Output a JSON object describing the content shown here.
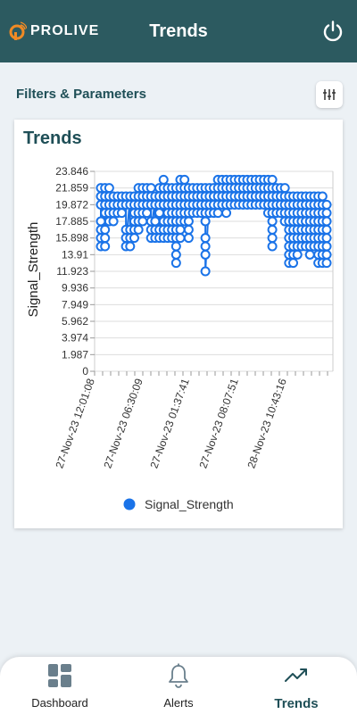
{
  "header": {
    "logo_text": "PROLIVE",
    "title": "Trends"
  },
  "filters": {
    "label": "Filters & Parameters"
  },
  "card": {
    "title": "Trends"
  },
  "chart_data": {
    "type": "scatter",
    "title": "Trends",
    "xlabel": "",
    "ylabel": "Signal_Strength",
    "ylim": [
      0,
      23.846
    ],
    "y_ticks": [
      "23.846",
      "21.859",
      "19.872",
      "17.885",
      "15.898",
      "13.91",
      "11.923",
      "9.936",
      "7.949",
      "5.962",
      "3.974",
      "1.987",
      "0"
    ],
    "x_ticks": [
      "27-Nov-23 12:01:08",
      "27-Nov-23 06:30:09",
      "27-Nov-23 01:37:41",
      "27-Nov-23 08:07:51",
      "28-Nov-23 10:43:16"
    ],
    "legend": "bottom",
    "grid": true,
    "series": [
      {
        "name": "Signal_Strength",
        "color": "#1a73e8",
        "values": [
          [
            0,
            21.86
          ],
          [
            0,
            20.87
          ],
          [
            0,
            19.87
          ],
          [
            0,
            17.89
          ],
          [
            0,
            16.89
          ],
          [
            0,
            15.9
          ],
          [
            0,
            14.9
          ],
          [
            1,
            21.86
          ],
          [
            1,
            20.87
          ],
          [
            1,
            19.87
          ],
          [
            1,
            18.88
          ],
          [
            1,
            16.89
          ],
          [
            1,
            15.9
          ],
          [
            1,
            14.9
          ],
          [
            2,
            21.86
          ],
          [
            2,
            20.87
          ],
          [
            2,
            19.87
          ],
          [
            2,
            18.88
          ],
          [
            2,
            17.89
          ],
          [
            3,
            20.87
          ],
          [
            3,
            19.87
          ],
          [
            3,
            18.88
          ],
          [
            3,
            17.89
          ],
          [
            4,
            20.87
          ],
          [
            4,
            19.87
          ],
          [
            4,
            18.88
          ],
          [
            5,
            20.87
          ],
          [
            5,
            19.87
          ],
          [
            5,
            18.88
          ],
          [
            6,
            20.87
          ],
          [
            6,
            19.87
          ],
          [
            6,
            16.89
          ],
          [
            6,
            15.9
          ],
          [
            6,
            14.9
          ],
          [
            7,
            20.87
          ],
          [
            7,
            19.87
          ],
          [
            7,
            16.89
          ],
          [
            7,
            15.9
          ],
          [
            7,
            14.9
          ],
          [
            8,
            20.87
          ],
          [
            8,
            19.87
          ],
          [
            8,
            18.88
          ],
          [
            8,
            17.89
          ],
          [
            8,
            16.89
          ],
          [
            8,
            15.9
          ],
          [
            9,
            21.86
          ],
          [
            9,
            20.87
          ],
          [
            9,
            19.87
          ],
          [
            9,
            18.88
          ],
          [
            9,
            17.89
          ],
          [
            9,
            16.89
          ],
          [
            10,
            21.86
          ],
          [
            10,
            20.87
          ],
          [
            10,
            19.87
          ],
          [
            10,
            18.88
          ],
          [
            10,
            17.89
          ],
          [
            11,
            21.86
          ],
          [
            11,
            20.87
          ],
          [
            11,
            19.87
          ],
          [
            11,
            18.88
          ],
          [
            12,
            21.86
          ],
          [
            12,
            20.87
          ],
          [
            12,
            19.87
          ],
          [
            12,
            17.89
          ],
          [
            12,
            16.89
          ],
          [
            12,
            15.9
          ],
          [
            13,
            20.87
          ],
          [
            13,
            19.87
          ],
          [
            13,
            17.89
          ],
          [
            13,
            16.89
          ],
          [
            13,
            15.9
          ],
          [
            14,
            21.86
          ],
          [
            14,
            20.87
          ],
          [
            14,
            19.87
          ],
          [
            14,
            18.88
          ],
          [
            14,
            16.89
          ],
          [
            14,
            15.9
          ],
          [
            15,
            22.85
          ],
          [
            15,
            21.86
          ],
          [
            15,
            20.87
          ],
          [
            15,
            19.87
          ],
          [
            15,
            17.89
          ],
          [
            15,
            16.89
          ],
          [
            15,
            15.9
          ],
          [
            16,
            21.86
          ],
          [
            16,
            20.87
          ],
          [
            16,
            19.87
          ],
          [
            16,
            18.88
          ],
          [
            16,
            17.89
          ],
          [
            16,
            16.89
          ],
          [
            16,
            15.9
          ],
          [
            17,
            21.86
          ],
          [
            17,
            20.87
          ],
          [
            17,
            19.87
          ],
          [
            17,
            18.88
          ],
          [
            17,
            17.89
          ],
          [
            17,
            16.89
          ],
          [
            17,
            15.9
          ],
          [
            18,
            21.86
          ],
          [
            18,
            20.87
          ],
          [
            18,
            19.87
          ],
          [
            18,
            18.88
          ],
          [
            18,
            17.89
          ],
          [
            18,
            16.89
          ],
          [
            18,
            15.9
          ],
          [
            18,
            14.9
          ],
          [
            18,
            13.91
          ],
          [
            18,
            12.92
          ],
          [
            19,
            22.85
          ],
          [
            19,
            21.86
          ],
          [
            19,
            20.87
          ],
          [
            19,
            19.87
          ],
          [
            19,
            18.88
          ],
          [
            19,
            17.89
          ],
          [
            19,
            16.89
          ],
          [
            19,
            15.9
          ],
          [
            20,
            22.85
          ],
          [
            20,
            21.86
          ],
          [
            20,
            20.87
          ],
          [
            20,
            19.87
          ],
          [
            20,
            18.88
          ],
          [
            20,
            17.89
          ],
          [
            21,
            21.86
          ],
          [
            21,
            20.87
          ],
          [
            21,
            19.87
          ],
          [
            21,
            18.88
          ],
          [
            21,
            17.89
          ],
          [
            21,
            16.89
          ],
          [
            21,
            15.9
          ],
          [
            22,
            21.86
          ],
          [
            22,
            20.87
          ],
          [
            22,
            19.87
          ],
          [
            22,
            18.88
          ],
          [
            23,
            21.86
          ],
          [
            23,
            20.87
          ],
          [
            23,
            19.87
          ],
          [
            23,
            18.88
          ],
          [
            24,
            21.86
          ],
          [
            24,
            20.87
          ],
          [
            24,
            19.87
          ],
          [
            24,
            18.88
          ],
          [
            25,
            21.86
          ],
          [
            25,
            20.87
          ],
          [
            25,
            19.87
          ],
          [
            25,
            18.88
          ],
          [
            25,
            17.89
          ],
          [
            25,
            15.9
          ],
          [
            25,
            14.9
          ],
          [
            25,
            13.91
          ],
          [
            25,
            11.92
          ],
          [
            26,
            21.86
          ],
          [
            26,
            20.87
          ],
          [
            26,
            19.87
          ],
          [
            26,
            18.88
          ],
          [
            27,
            21.86
          ],
          [
            27,
            20.87
          ],
          [
            27,
            19.87
          ],
          [
            27,
            18.88
          ],
          [
            28,
            22.85
          ],
          [
            28,
            21.86
          ],
          [
            28,
            20.87
          ],
          [
            28,
            19.87
          ],
          [
            28,
            18.88
          ],
          [
            29,
            22.85
          ],
          [
            29,
            21.86
          ],
          [
            29,
            20.87
          ],
          [
            29,
            19.87
          ],
          [
            30,
            22.85
          ],
          [
            30,
            21.86
          ],
          [
            30,
            20.87
          ],
          [
            30,
            19.87
          ],
          [
            30,
            18.88
          ],
          [
            31,
            22.85
          ],
          [
            31,
            21.86
          ],
          [
            31,
            20.87
          ],
          [
            31,
            19.87
          ],
          [
            32,
            22.85
          ],
          [
            32,
            21.86
          ],
          [
            32,
            20.87
          ],
          [
            32,
            19.87
          ],
          [
            33,
            22.85
          ],
          [
            33,
            21.86
          ],
          [
            33,
            20.87
          ],
          [
            33,
            19.87
          ],
          [
            34,
            22.85
          ],
          [
            34,
            21.86
          ],
          [
            34,
            20.87
          ],
          [
            34,
            19.87
          ],
          [
            35,
            22.85
          ],
          [
            35,
            21.86
          ],
          [
            35,
            20.87
          ],
          [
            35,
            19.87
          ],
          [
            36,
            22.85
          ],
          [
            36,
            21.86
          ],
          [
            36,
            20.87
          ],
          [
            36,
            19.87
          ],
          [
            37,
            22.85
          ],
          [
            37,
            21.86
          ],
          [
            37,
            20.87
          ],
          [
            37,
            19.87
          ],
          [
            38,
            22.85
          ],
          [
            38,
            21.86
          ],
          [
            38,
            20.87
          ],
          [
            38,
            19.87
          ],
          [
            39,
            22.85
          ],
          [
            39,
            21.86
          ],
          [
            39,
            20.87
          ],
          [
            39,
            19.87
          ],
          [
            40,
            22.85
          ],
          [
            40,
            21.86
          ],
          [
            40,
            20.87
          ],
          [
            40,
            19.87
          ],
          [
            40,
            18.88
          ],
          [
            41,
            22.85
          ],
          [
            41,
            21.86
          ],
          [
            41,
            20.87
          ],
          [
            41,
            19.87
          ],
          [
            41,
            18.88
          ],
          [
            41,
            17.89
          ],
          [
            41,
            16.89
          ],
          [
            41,
            15.9
          ],
          [
            41,
            14.9
          ],
          [
            42,
            21.86
          ],
          [
            42,
            20.87
          ],
          [
            42,
            19.87
          ],
          [
            42,
            18.88
          ],
          [
            43,
            21.86
          ],
          [
            43,
            20.87
          ],
          [
            43,
            19.87
          ],
          [
            43,
            18.88
          ],
          [
            44,
            21.86
          ],
          [
            44,
            20.87
          ],
          [
            44,
            19.87
          ],
          [
            44,
            18.88
          ],
          [
            44,
            17.89
          ],
          [
            45,
            20.87
          ],
          [
            45,
            19.87
          ],
          [
            45,
            18.88
          ],
          [
            45,
            17.89
          ],
          [
            45,
            16.89
          ],
          [
            45,
            15.9
          ],
          [
            45,
            14.9
          ],
          [
            45,
            13.91
          ],
          [
            45,
            12.92
          ],
          [
            46,
            20.87
          ],
          [
            46,
            19.87
          ],
          [
            46,
            18.88
          ],
          [
            46,
            17.89
          ],
          [
            46,
            16.89
          ],
          [
            46,
            15.9
          ],
          [
            46,
            14.9
          ],
          [
            46,
            13.91
          ],
          [
            46,
            12.92
          ],
          [
            47,
            20.87
          ],
          [
            47,
            19.87
          ],
          [
            47,
            18.88
          ],
          [
            47,
            17.89
          ],
          [
            47,
            16.89
          ],
          [
            47,
            15.9
          ],
          [
            47,
            14.9
          ],
          [
            47,
            13.91
          ],
          [
            48,
            20.87
          ],
          [
            48,
            19.87
          ],
          [
            48,
            18.88
          ],
          [
            48,
            17.89
          ],
          [
            48,
            16.89
          ],
          [
            48,
            15.9
          ],
          [
            48,
            14.9
          ],
          [
            49,
            20.87
          ],
          [
            49,
            19.87
          ],
          [
            49,
            18.88
          ],
          [
            49,
            17.89
          ],
          [
            49,
            16.89
          ],
          [
            49,
            15.9
          ],
          [
            49,
            14.9
          ],
          [
            50,
            20.87
          ],
          [
            50,
            19.87
          ],
          [
            50,
            18.88
          ],
          [
            50,
            17.89
          ],
          [
            50,
            16.89
          ],
          [
            50,
            15.9
          ],
          [
            50,
            14.9
          ],
          [
            50,
            13.91
          ],
          [
            51,
            20.87
          ],
          [
            51,
            19.87
          ],
          [
            51,
            18.88
          ],
          [
            51,
            17.89
          ],
          [
            51,
            16.89
          ],
          [
            51,
            15.9
          ],
          [
            51,
            14.9
          ],
          [
            52,
            20.87
          ],
          [
            52,
            19.87
          ],
          [
            52,
            18.88
          ],
          [
            52,
            17.89
          ],
          [
            52,
            16.89
          ],
          [
            52,
            15.9
          ],
          [
            52,
            14.9
          ],
          [
            52,
            13.91
          ],
          [
            52,
            12.92
          ],
          [
            53,
            20.87
          ],
          [
            53,
            19.87
          ],
          [
            53,
            18.88
          ],
          [
            53,
            17.89
          ],
          [
            53,
            16.89
          ],
          [
            53,
            15.9
          ],
          [
            53,
            14.9
          ],
          [
            53,
            13.91
          ],
          [
            53,
            12.92
          ],
          [
            54,
            19.87
          ],
          [
            54,
            18.88
          ],
          [
            54,
            17.89
          ],
          [
            54,
            16.89
          ],
          [
            54,
            15.9
          ],
          [
            54,
            14.9
          ],
          [
            54,
            13.91
          ],
          [
            54,
            12.92
          ]
        ]
      }
    ]
  },
  "legend": {
    "label": "Signal_Strength"
  },
  "nav": {
    "dashboard": "Dashboard",
    "alerts": "Alerts",
    "trends": "Trends"
  },
  "colors": {
    "header_bg": "#2c5a60",
    "accent": "#1f4f57",
    "point": "#1a73e8",
    "logo_orange": "#f08a24"
  }
}
